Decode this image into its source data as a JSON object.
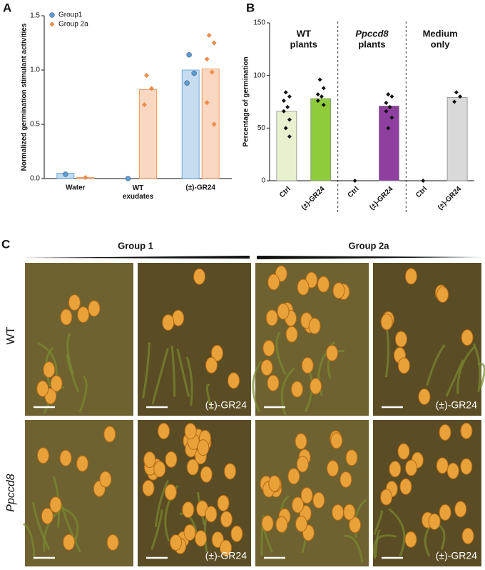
{
  "chart_data": [
    {
      "type": "bar",
      "panel": "A",
      "y_label": "Normalized germination stimulant activities",
      "categories": [
        "Water",
        "WT\nexudates",
        "(±)-GR24"
      ],
      "series": [
        {
          "name": "Group1",
          "color": "#5b9bd5",
          "marker": "circle",
          "values": [
            0.05,
            0.0,
            1.0
          ],
          "points": [
            [
              0.04
            ],
            [
              0.0
            ],
            [
              1.14,
              0.97,
              0.88
            ]
          ]
        },
        {
          "name": "Group 2a",
          "color": "#ed8c4a",
          "marker": "diamond",
          "values": [
            0.01,
            0.82,
            1.01
          ],
          "points": [
            [
              0.01
            ],
            [
              0.95,
              0.83,
              0.68
            ],
            [
              1.32,
              1.25,
              1.1,
              0.98,
              0.7,
              0.5
            ]
          ]
        }
      ],
      "ylim": [
        0,
        1.5
      ],
      "yticks": [
        {
          "value": 0,
          "label": "0.0"
        },
        0.5,
        {
          "value": 1,
          "label": "1.0"
        },
        1.5
      ],
      "legend": "top-left"
    },
    {
      "type": "bar",
      "panel": "B",
      "y_label": "Percentage of germination",
      "categories": [
        "Ctrl",
        "(±)-GR24",
        "Ctrl",
        "(±)-GR24",
        "Ctrl",
        "(±)-GR24"
      ],
      "values": [
        66,
        78,
        0,
        71,
        0,
        79
      ],
      "colors": [
        "#e8f1cf",
        "#8fcc3c",
        "#ffffff",
        "#8e3fa0",
        "#ffffff",
        "#d9d9d9"
      ],
      "point_color": "#111111",
      "marker": "diamond",
      "points": [
        [
          84,
          80,
          76,
          70,
          66,
          58,
          50,
          42
        ],
        [
          96,
          88,
          82,
          80,
          76,
          72
        ],
        [
          0
        ],
        [
          82,
          80,
          74,
          70,
          66,
          60,
          50
        ],
        [
          0
        ],
        [
          84,
          80,
          75
        ]
      ],
      "groups": [
        [
          "WT",
          "plants"
        ],
        [
          "Ppccd8",
          "plants"
        ],
        [
          "Medium",
          "only"
        ]
      ],
      "ylim": [
        0,
        150
      ],
      "yticks": [
        0,
        50,
        100,
        150
      ]
    }
  ],
  "panel_c": {
    "label": "C",
    "columns": [
      "Group 1",
      "Group 2a"
    ],
    "rows": [
      "WT",
      "Ppccd8"
    ],
    "treatment_label": "(±)-GR24"
  }
}
